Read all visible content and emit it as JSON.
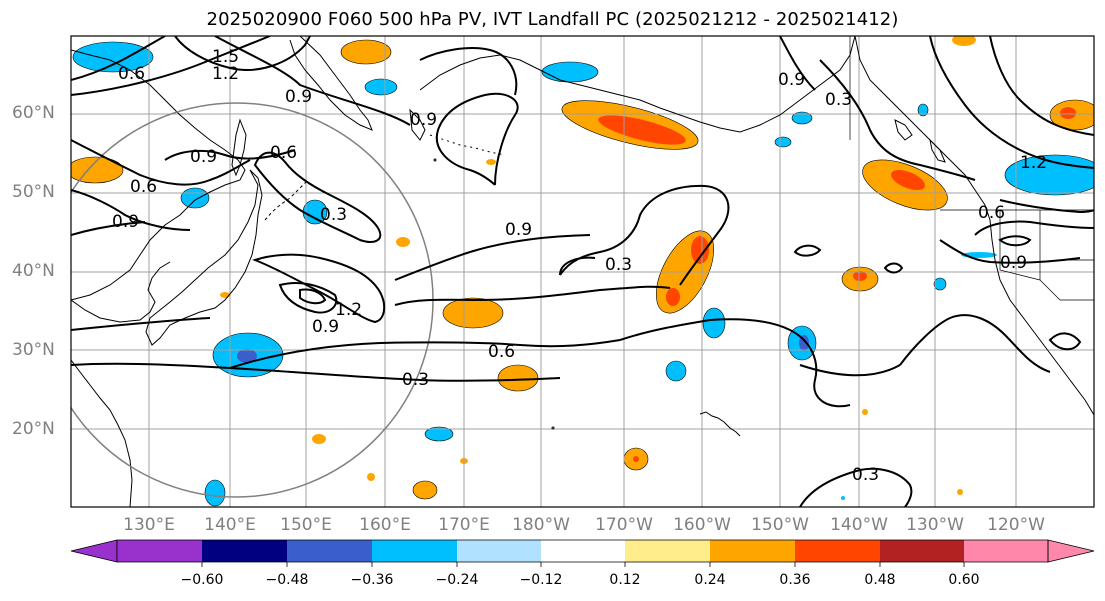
{
  "title": "2025020900 F060 500 hPa PV, IVT Landfall PC (2025021212 - 2025021412)",
  "map": {
    "lat_labels": [
      "60°N",
      "50°N",
      "40°N",
      "30°N",
      "20°N"
    ],
    "lon_labels": [
      "130°E",
      "140°E",
      "150°E",
      "160°E",
      "170°E",
      "180°W",
      "170°W",
      "160°W",
      "150°W",
      "140°W",
      "130°W",
      "120°W"
    ],
    "contour_labels": [
      "1.5",
      "1.2",
      "0.6",
      "0.9",
      "0.6",
      "0.6",
      "0.9",
      "0.9",
      "0.3",
      "0.9",
      "0.3",
      "1.2",
      "0.9",
      "0.6",
      "0.3",
      "0.9",
      "0.3",
      "0.9",
      "1.2",
      "0.6",
      "0.9",
      "0.3"
    ],
    "colors": {
      "ocean_background": "#ffffff",
      "gridline": "#a0a0a0",
      "contour": "#000000",
      "circle": "#808080"
    }
  },
  "colorbar": {
    "ticks": [
      "−0.60",
      "−0.48",
      "−0.36",
      "−0.24",
      "−0.12",
      "0.12",
      "0.24",
      "0.36",
      "0.48",
      "0.60"
    ],
    "colors": [
      "#9932cc",
      "#000080",
      "#3a5fcd",
      "#00bfff",
      "#b0e2ff",
      "#ffffff",
      "#ffec8b",
      "#ffa500",
      "#ff4500",
      "#b22222",
      "#ff88aa"
    ]
  }
}
